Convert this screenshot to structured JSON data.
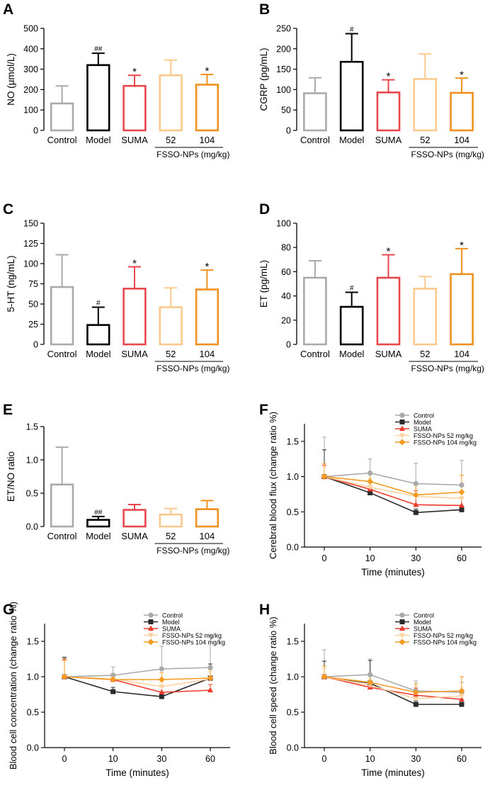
{
  "colors": {
    "Control": "#aaaaaa",
    "Model": "#000000",
    "SUMA": "#e8474c",
    "52": "#fbc98d",
    "104": "#f0901e",
    "line_Control": "#a9a9a9",
    "line_Model": "#2b2b2b",
    "line_SUMA": "#ee3a2a",
    "line_52": "#fcd3a0",
    "line_104": "#f59a23"
  },
  "chart_data": [
    {
      "id": "A",
      "panel_label": "A",
      "type": "bar",
      "ylabel": "NO (μmol/L)",
      "ylim": [
        0,
        500
      ],
      "yticks": [
        0,
        100,
        200,
        300,
        400,
        500
      ],
      "categories": [
        "Control",
        "Model",
        "SUMA",
        "52",
        "104"
      ],
      "values": [
        132,
        320,
        218,
        270,
        224
      ],
      "errors": [
        86,
        58,
        52,
        74,
        50
      ],
      "annotations": [
        "",
        "##",
        "*",
        "",
        "*"
      ],
      "group_label": "FSSO-NPs (mg/kg)"
    },
    {
      "id": "B",
      "panel_label": "B",
      "type": "bar",
      "ylabel": "CGRP (pg/mL)",
      "ylim": [
        0,
        250
      ],
      "yticks": [
        0,
        50,
        100,
        150,
        200,
        250
      ],
      "categories": [
        "Control",
        "Model",
        "SUMA",
        "52",
        "104"
      ],
      "values": [
        91,
        168,
        93,
        126,
        92
      ],
      "errors": [
        38,
        69,
        31,
        61,
        36
      ],
      "annotations": [
        "",
        "#",
        "*",
        "",
        "*"
      ],
      "group_label": "FSSO-NPs (mg/kg)"
    },
    {
      "id": "C",
      "panel_label": "C",
      "type": "bar",
      "ylabel": "5-HT (ng/mL)",
      "ylim": [
        0,
        150
      ],
      "yticks": [
        0,
        25,
        50,
        75,
        100,
        125,
        150
      ],
      "categories": [
        "Control",
        "Model",
        "SUMA",
        "52",
        "104"
      ],
      "values": [
        71,
        24,
        69,
        46,
        68
      ],
      "errors": [
        40,
        22,
        27,
        24,
        24
      ],
      "annotations": [
        "",
        "#",
        "*",
        "",
        "*"
      ],
      "group_label": "FSSO-NPs (mg/kg)"
    },
    {
      "id": "D",
      "panel_label": "D",
      "type": "bar",
      "ylabel": "ET (pg/mL)",
      "ylim": [
        0,
        100
      ],
      "yticks": [
        0,
        20,
        40,
        60,
        80,
        100
      ],
      "categories": [
        "Control",
        "Model",
        "SUMA",
        "52",
        "104"
      ],
      "values": [
        55,
        31,
        55,
        46,
        58
      ],
      "errors": [
        14,
        12,
        19,
        10,
        21
      ],
      "annotations": [
        "",
        "#",
        "*",
        "",
        "*"
      ],
      "group_label": "FSSO-NPs (mg/kg)"
    },
    {
      "id": "E",
      "panel_label": "E",
      "type": "bar",
      "ylabel": "ET/NO ratio",
      "ylim": [
        0,
        1.5
      ],
      "yticks": [
        "0.0",
        "0.5",
        "1.0",
        "1.5"
      ],
      "categories": [
        "Control",
        "Model",
        "SUMA",
        "52",
        "104"
      ],
      "values": [
        0.63,
        0.1,
        0.25,
        0.18,
        0.26
      ],
      "errors": [
        0.56,
        0.05,
        0.08,
        0.09,
        0.13
      ],
      "annotations": [
        "",
        "##",
        "",
        "",
        ""
      ],
      "group_label": "FSSO-NPs (mg/kg)"
    },
    {
      "id": "F",
      "panel_label": "F",
      "type": "line",
      "ylabel": "Cerebral blood flux (change ratio %)",
      "xlabel": "Time (minutes)",
      "x": [
        "0",
        "10",
        "30",
        "60"
      ],
      "ylim": [
        0,
        1.75
      ],
      "yticks": [
        "0.0",
        "0.5",
        "1.0",
        "1.5"
      ],
      "series": [
        {
          "name": "Control",
          "key": "Control",
          "values": [
            1.0,
            1.05,
            0.9,
            0.88
          ],
          "errors": [
            0.56,
            0.2,
            0.29,
            0.35
          ]
        },
        {
          "name": "Model",
          "key": "Model",
          "values": [
            1.0,
            0.77,
            0.49,
            0.53
          ],
          "errors": [
            0.38,
            0.05,
            0.05,
            0.05
          ]
        },
        {
          "name": "SUMA",
          "key": "SUMA",
          "values": [
            1.0,
            0.82,
            0.6,
            0.59
          ],
          "errors": [
            0.16,
            0.1,
            0.2,
            0.2
          ]
        },
        {
          "name": "FSSO-NPs  52 mg/kg",
          "key": "52",
          "values": [
            1.0,
            0.85,
            0.72,
            0.69
          ],
          "errors": [
            0.14,
            0.12,
            0.16,
            0.18
          ]
        },
        {
          "name": "FSSO-NPs  104 mg/kg",
          "key": "104",
          "values": [
            1.0,
            0.93,
            0.74,
            0.78
          ],
          "errors": [
            0.18,
            0.12,
            0.16,
            0.24
          ]
        }
      ]
    },
    {
      "id": "G",
      "panel_label": "G",
      "type": "line",
      "ylabel": "Blood cell concentration (change ratio %)",
      "xlabel": "Time (minutes)",
      "x": [
        "0",
        "10",
        "30",
        "60"
      ],
      "ylim": [
        0,
        1.75
      ],
      "yticks": [
        "0.0",
        "0.5",
        "1.0",
        "1.5"
      ],
      "series": [
        {
          "name": "Control",
          "key": "Control",
          "values": [
            1.0,
            1.02,
            1.11,
            1.13
          ],
          "errors": [
            0.28,
            0.12,
            0.32,
            0.45
          ]
        },
        {
          "name": "Model",
          "key": "Model",
          "values": [
            1.0,
            0.79,
            0.72,
            0.98
          ],
          "errors": [
            0.27,
            0.06,
            0.05,
            0.2
          ]
        },
        {
          "name": "SUMA",
          "key": "SUMA",
          "values": [
            1.0,
            0.96,
            0.78,
            0.81
          ],
          "errors": [
            0.24,
            0.08,
            0.08,
            0.08
          ]
        },
        {
          "name": "FSSO-NPs  52 mg/kg",
          "key": "52",
          "values": [
            1.0,
            0.97,
            0.86,
            0.97
          ],
          "errors": [
            0.23,
            0.08,
            0.12,
            0.1
          ]
        },
        {
          "name": "FSSO-NPs  104 mg/kg",
          "key": "104",
          "values": [
            1.0,
            0.96,
            0.96,
            0.98
          ],
          "errors": [
            0.25,
            0.08,
            0.1,
            0.12
          ]
        }
      ]
    },
    {
      "id": "H",
      "panel_label": "H",
      "type": "line",
      "ylabel": "Blood cell speed (change ratio %)",
      "xlabel": "Time (minutes)",
      "x": [
        "0",
        "10",
        "30",
        "60"
      ],
      "ylim": [
        0,
        1.75
      ],
      "yticks": [
        "0.0",
        "0.5",
        "1.0",
        "1.5"
      ],
      "series": [
        {
          "name": "Control",
          "key": "Control",
          "values": [
            1.0,
            1.03,
            0.8,
            0.78
          ],
          "errors": [
            0.38,
            0.22,
            0.14,
            0.14
          ]
        },
        {
          "name": "Model",
          "key": "Model",
          "values": [
            1.0,
            0.91,
            0.61,
            0.61
          ],
          "errors": [
            0.22,
            0.32,
            0.05,
            0.05
          ]
        },
        {
          "name": "SUMA",
          "key": "SUMA",
          "values": [
            1.0,
            0.85,
            0.74,
            0.68
          ],
          "errors": [
            0.12,
            0.08,
            0.1,
            0.12
          ]
        },
        {
          "name": "FSSO-NPs  52 mg/kg",
          "key": "52",
          "values": [
            1.0,
            0.88,
            0.69,
            0.73
          ],
          "errors": [
            0.12,
            0.08,
            0.12,
            0.12
          ]
        },
        {
          "name": "FSSO-NPs  104 mg/kg",
          "key": "104",
          "values": [
            1.0,
            0.92,
            0.78,
            0.8
          ],
          "errors": [
            0.15,
            0.1,
            0.12,
            0.2
          ]
        }
      ]
    }
  ]
}
